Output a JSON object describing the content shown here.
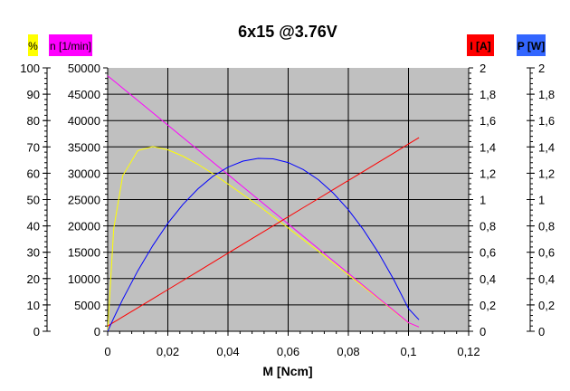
{
  "chart_data": {
    "type": "line",
    "title": "6x15 @3.76V",
    "xlabel": "M [Ncm]",
    "xlim": [
      0,
      0.12
    ],
    "xticks": [
      "0",
      "0,02",
      "0,04",
      "0,06",
      "0,08",
      "0,1",
      "0,12"
    ],
    "grid": true,
    "background": "#c0c0c0",
    "axes": [
      {
        "id": "eff",
        "label": "%",
        "side": "left-outer",
        "color": "#ffff00",
        "ylim": [
          0,
          100
        ],
        "ticks": [
          "0",
          "10",
          "20",
          "30",
          "40",
          "50",
          "60",
          "70",
          "80",
          "90",
          "100"
        ]
      },
      {
        "id": "n",
        "label": "n [1/min]",
        "side": "left",
        "color": "#ff00ff",
        "ylim": [
          0,
          50000
        ],
        "ticks": [
          "0",
          "5000",
          "10000",
          "15000",
          "20000",
          "25000",
          "30000",
          "35000",
          "40000",
          "45000",
          "50000"
        ]
      },
      {
        "id": "I",
        "label": "I [A]",
        "side": "right",
        "color": "#ff0000",
        "ylim": [
          0,
          2
        ],
        "ticks": [
          "0",
          "0,2",
          "0,4",
          "0,6",
          "0,8",
          "1",
          "1,2",
          "1,4",
          "1,6",
          "1,8",
          "2"
        ]
      },
      {
        "id": "P",
        "label": "P [W]",
        "side": "right-outer",
        "color": "#3366ff",
        "ylim": [
          0,
          2
        ],
        "ticks": [
          "0",
          "0,2",
          "0,4",
          "0,6",
          "0,8",
          "1",
          "1,2",
          "1,4",
          "1,6",
          "1,8",
          "2"
        ]
      }
    ],
    "x": [
      0,
      0.002,
      0.005,
      0.01,
      0.015,
      0.02,
      0.025,
      0.03,
      0.035,
      0.04,
      0.045,
      0.05,
      0.055,
      0.06,
      0.065,
      0.07,
      0.075,
      0.08,
      0.085,
      0.09,
      0.095,
      0.1,
      0.1035
    ],
    "series": [
      {
        "axis": "eff",
        "color": "#ffff00",
        "values": [
          0,
          39,
          59,
          68.6,
          70.1,
          68.9,
          66.5,
          63.4,
          59.8,
          55.9,
          51.9,
          47.8,
          43.5,
          39.2,
          34.8,
          30.4,
          25.9,
          21.4,
          16.9,
          12.4,
          7.8,
          3.2,
          1.6
        ]
      },
      {
        "axis": "n",
        "color": "#ff00ff",
        "values": [
          48500,
          47563,
          46157,
          43814,
          41471,
          39128,
          36785,
          34442,
          32099,
          29756,
          27413,
          25070,
          22727,
          20384,
          18041,
          15698,
          13355,
          11012,
          8669,
          6327,
          3984,
          1641,
          800
        ]
      },
      {
        "axis": "I",
        "color": "#ff0000",
        "values": [
          0.04,
          0.068,
          0.109,
          0.178,
          0.247,
          0.316,
          0.385,
          0.454,
          0.524,
          0.593,
          0.662,
          0.731,
          0.8,
          0.869,
          0.938,
          1.007,
          1.076,
          1.145,
          1.214,
          1.283,
          1.352,
          1.422,
          1.47
        ]
      },
      {
        "axis": "P",
        "color": "#0000ff",
        "values": [
          0,
          0.1,
          0.242,
          0.459,
          0.651,
          0.82,
          0.963,
          1.082,
          1.177,
          1.246,
          1.292,
          1.313,
          1.309,
          1.281,
          1.228,
          1.151,
          1.049,
          0.923,
          0.772,
          0.596,
          0.396,
          0.172,
          0.087
        ]
      }
    ]
  }
}
